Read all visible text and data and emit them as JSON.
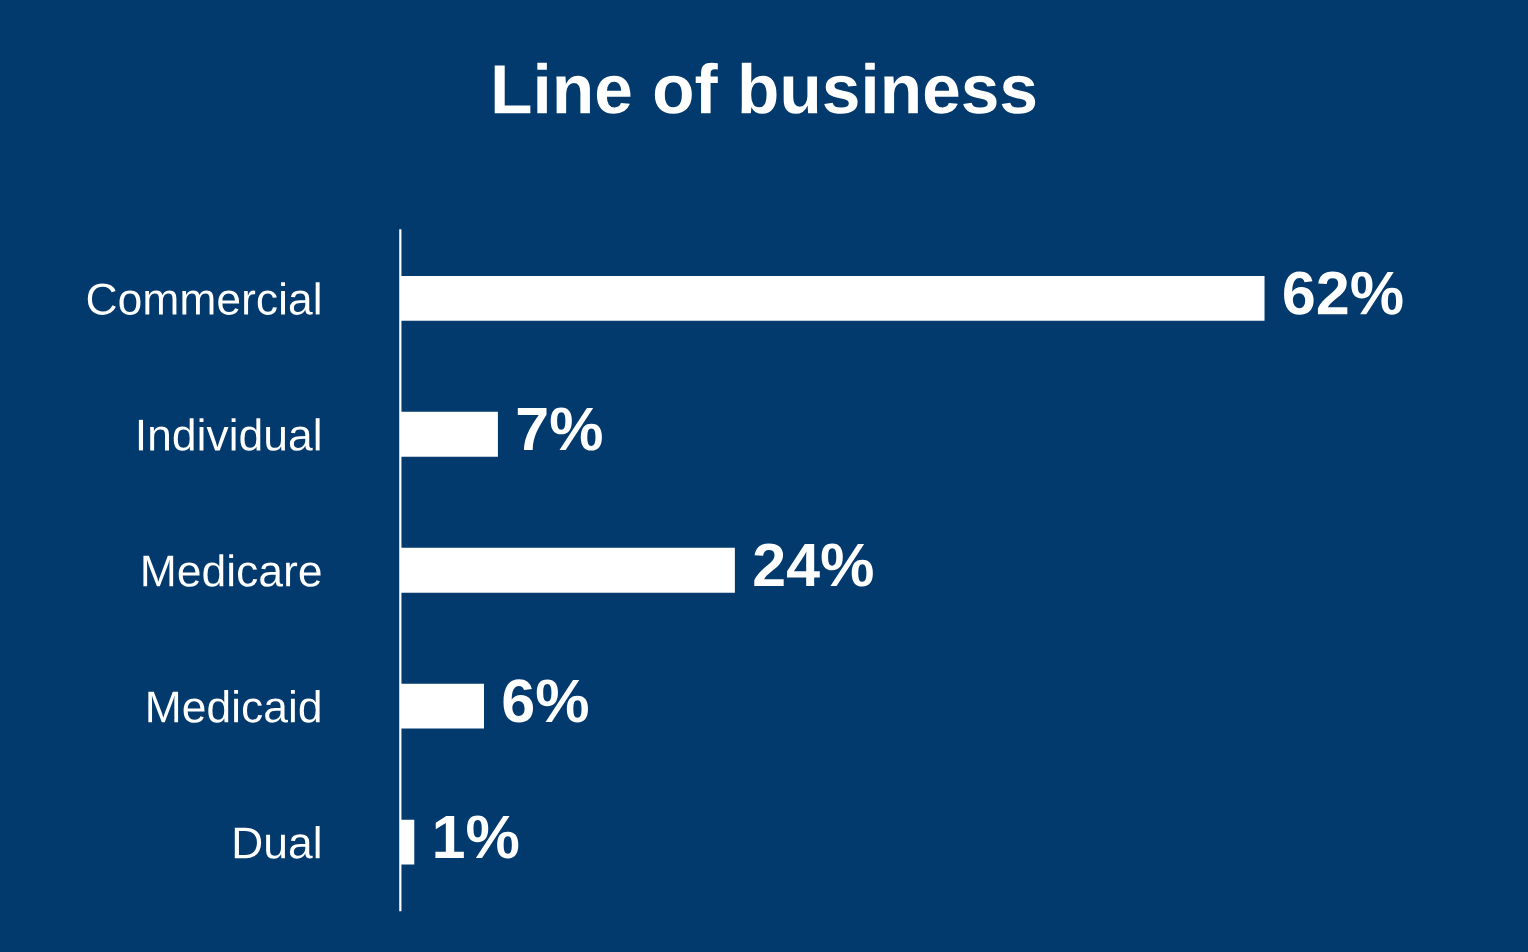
{
  "chart_data": {
    "type": "bar",
    "orientation": "horizontal",
    "title": "Line of business",
    "categories": [
      "Commercial",
      "Individual",
      "Medicare",
      "Medicaid",
      "Dual"
    ],
    "values": [
      62,
      7,
      24,
      6,
      1
    ],
    "value_labels": [
      "62%",
      "7%",
      "24%",
      "6%",
      "1%"
    ],
    "color": "#ffffff",
    "grid": false,
    "legend": false
  }
}
